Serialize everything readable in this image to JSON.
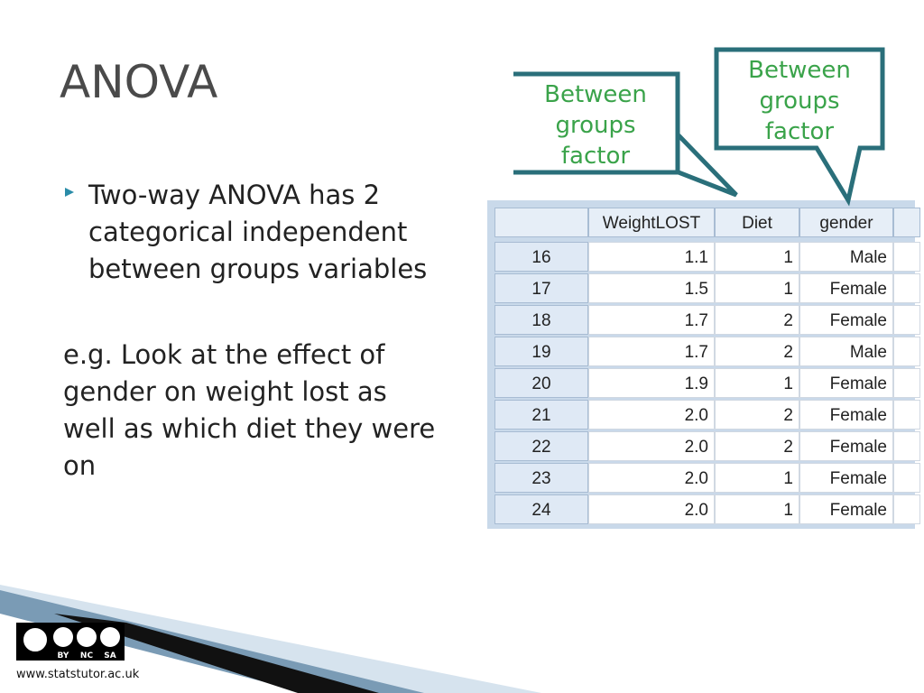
{
  "title": "ANOVA",
  "bullet": {
    "lines": [
      "Two-way ANOVA has 2",
      "categorical independent",
      "between groups variables"
    ]
  },
  "example": {
    "lines": [
      "e.g. Look at the effect of",
      "gender on weight lost as",
      "well as which diet they were",
      "on"
    ]
  },
  "callouts": [
    {
      "lines": [
        "Between",
        "groups",
        "factor"
      ]
    },
    {
      "lines": [
        "Between",
        "groups",
        "factor"
      ]
    }
  ],
  "table": {
    "header": [
      "WeightLOST",
      "Diet",
      "gender"
    ],
    "rows": [
      [
        "16",
        "1.1",
        "1",
        "Male"
      ],
      [
        "17",
        "1.5",
        "1",
        "Female"
      ],
      [
        "18",
        "1.7",
        "2",
        "Female"
      ],
      [
        "19",
        "1.7",
        "2",
        "Male"
      ],
      [
        "20",
        "1.9",
        "1",
        "Female"
      ],
      [
        "21",
        "2.0",
        "2",
        "Female"
      ],
      [
        "22",
        "2.0",
        "2",
        "Female"
      ],
      [
        "23",
        "2.0",
        "1",
        "Female"
      ],
      [
        "24",
        "2.0",
        "1",
        "Female"
      ]
    ]
  },
  "footer": {
    "license": [
      "BY",
      "NC",
      "SA"
    ],
    "url": "www.statstutor.ac.uk"
  }
}
